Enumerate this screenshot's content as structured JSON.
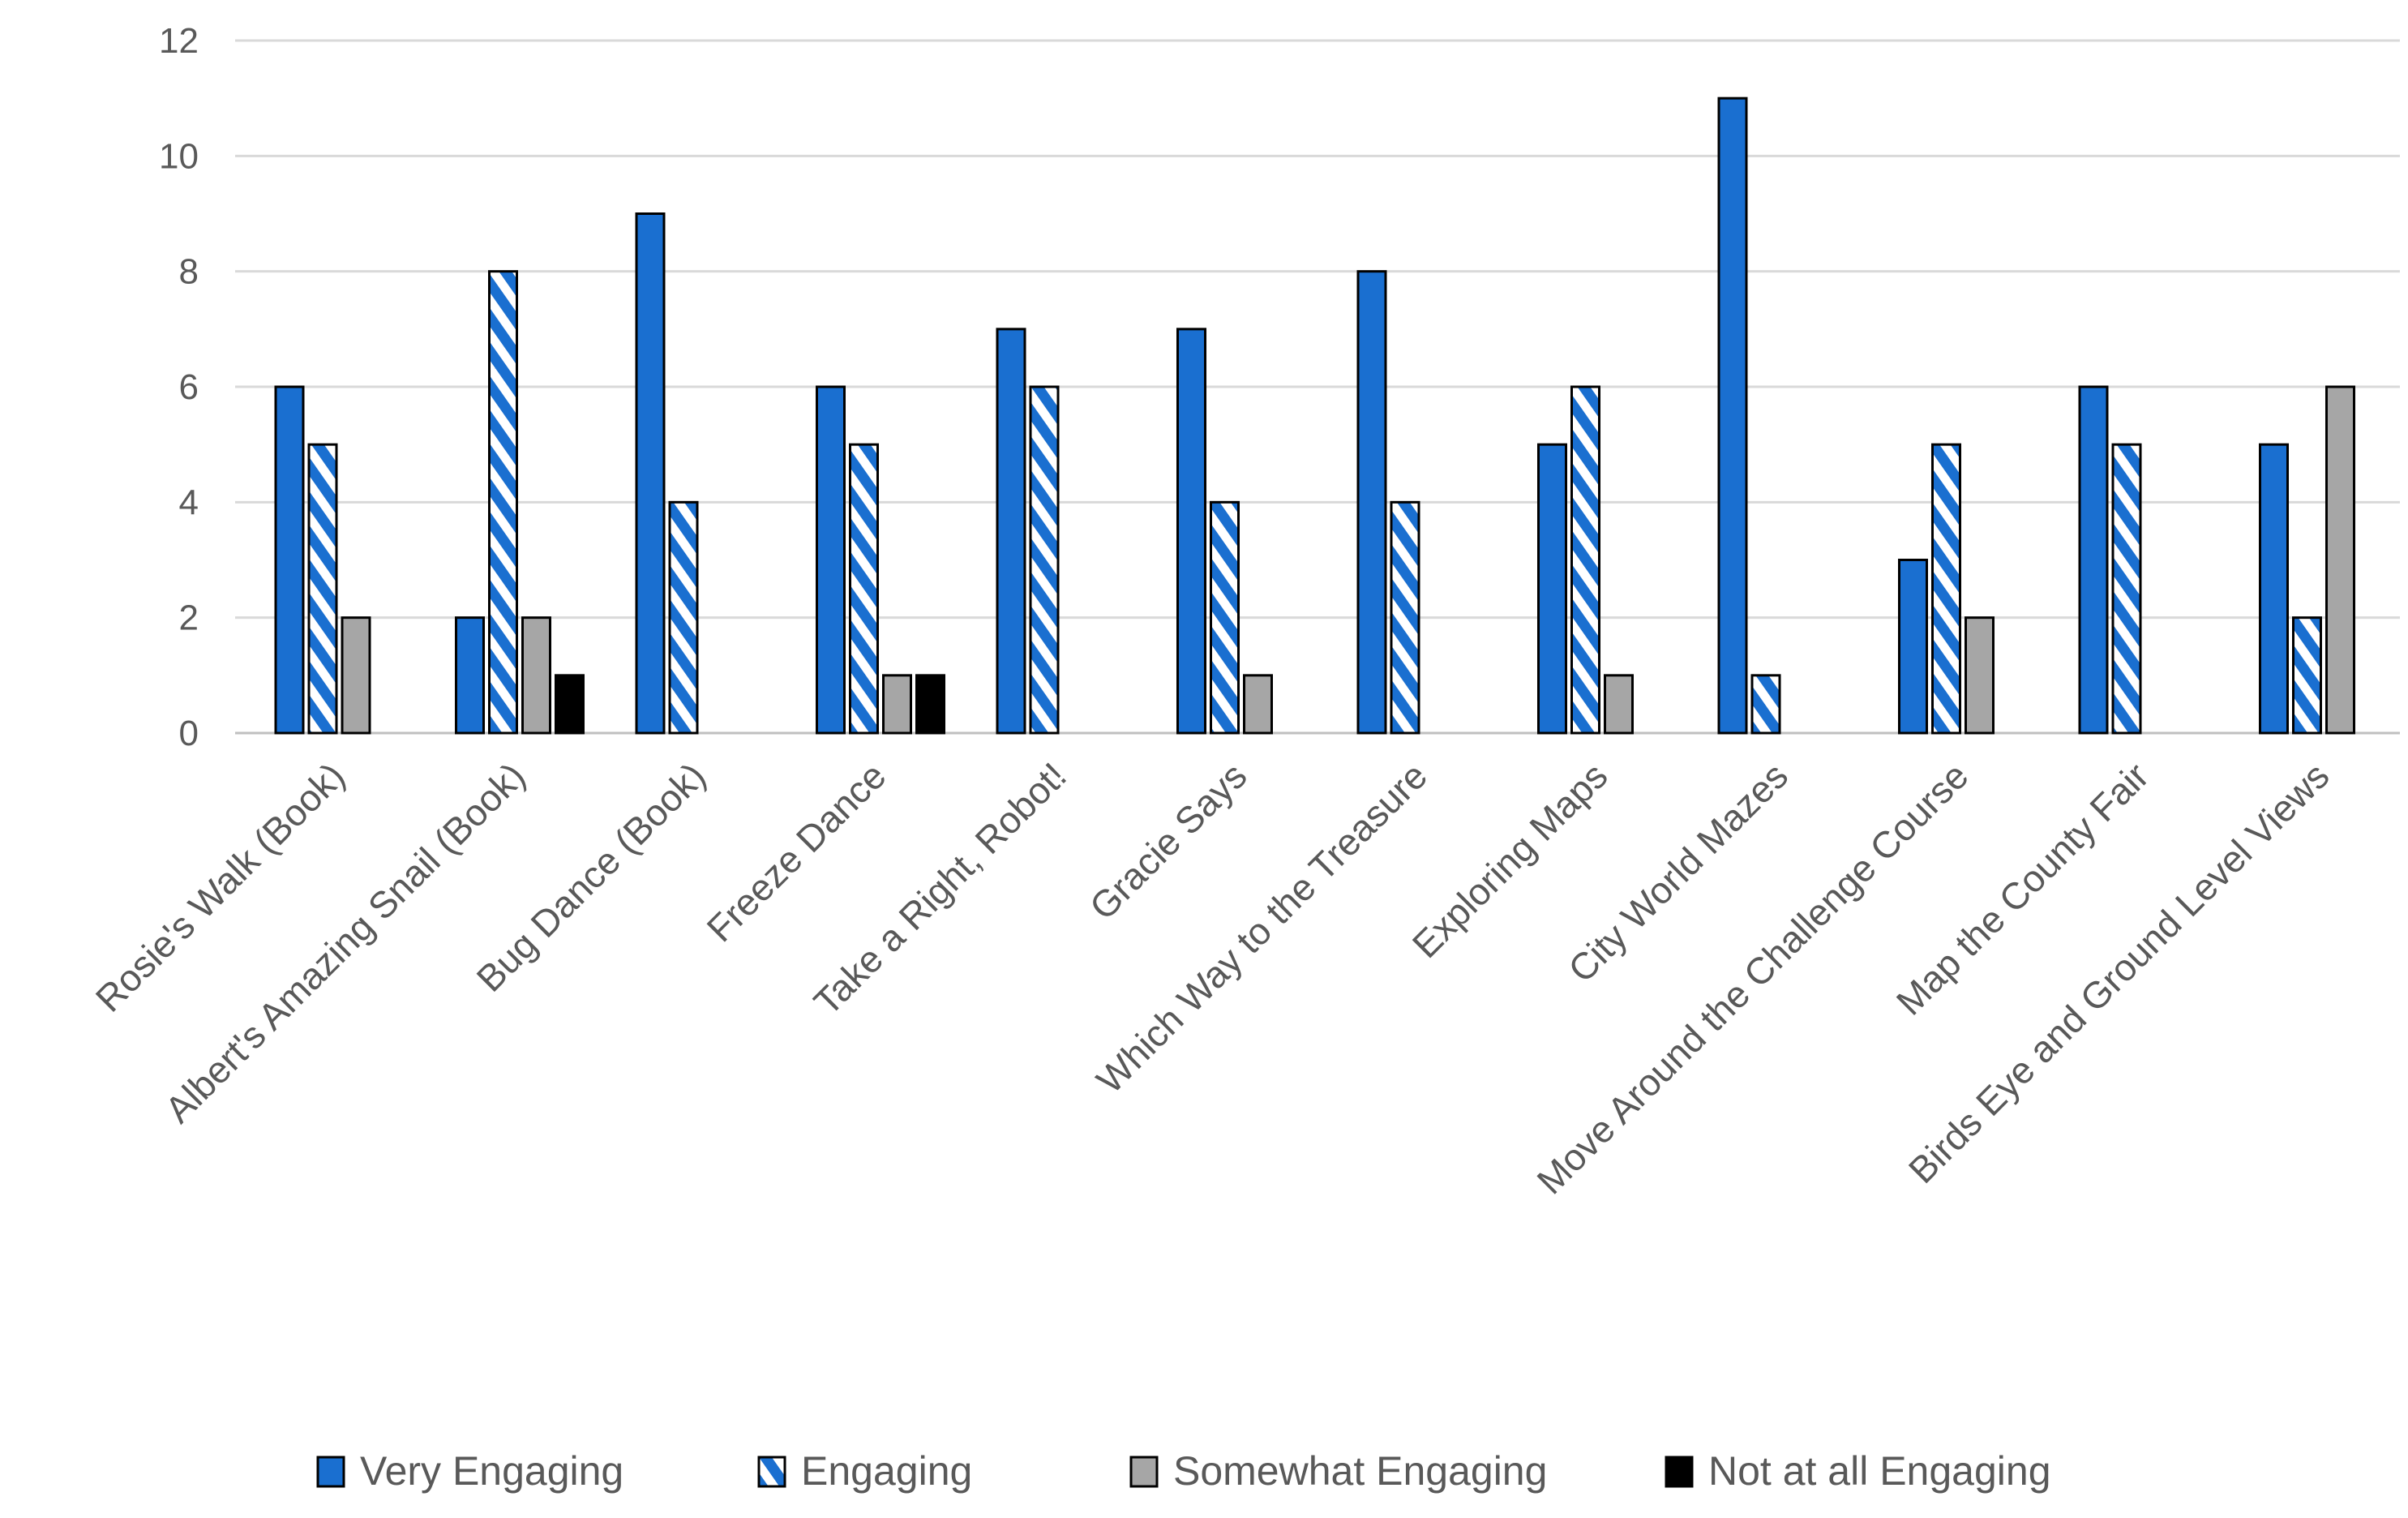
{
  "chart_data": {
    "type": "bar",
    "title": "",
    "xlabel": "",
    "ylabel": "",
    "ylim": [
      0,
      12
    ],
    "yticks": [
      0,
      2,
      4,
      6,
      8,
      10,
      12
    ],
    "grid": true,
    "legend_position": "bottom",
    "categories": [
      "Rosie's Walk (Book)",
      "Albert's Amazing Snail (Book)",
      "Bug Dance (Book)",
      "Freeze Dance",
      "Take a Right, Robot!",
      "Gracie Says",
      "Which Way to the Treasure",
      "Exploring Maps",
      "City World Mazes",
      "Move Around the Challenge Course",
      "Map the County Fair",
      "Birds Eye and Ground Level Views"
    ],
    "series": [
      {
        "name": "Very Engaging",
        "fill": "#1a6fd0",
        "pattern": "solid",
        "values": [
          6,
          2,
          9,
          6,
          7,
          7,
          8,
          5,
          11,
          3,
          6,
          5
        ]
      },
      {
        "name": "Engaging",
        "fill": "#1a6fd0",
        "pattern": "diagonal-stripes",
        "values": [
          5,
          8,
          4,
          5,
          6,
          4,
          4,
          6,
          1,
          5,
          5,
          2
        ]
      },
      {
        "name": "Somewhat Engaging",
        "fill": "#a6a6a6",
        "pattern": "solid",
        "values": [
          2,
          2,
          0,
          1,
          0,
          1,
          0,
          1,
          0,
          2,
          0,
          6
        ]
      },
      {
        "name": "Not at all Engaging",
        "fill": "#000000",
        "pattern": "solid",
        "values": [
          0,
          1,
          0,
          1,
          0,
          0,
          0,
          0,
          0,
          0,
          0,
          0
        ]
      }
    ]
  }
}
